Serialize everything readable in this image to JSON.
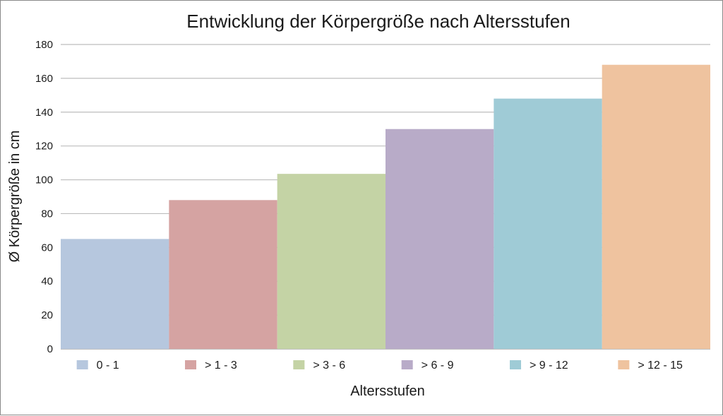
{
  "chart_data": {
    "type": "bar",
    "title": "Entwicklung der Körpergröße nach Altersstufen",
    "xlabel": "Altersstufen",
    "ylabel": "Ø  Körpergröße in cm",
    "categories": [
      "0 - 1",
      "> 1 - 3",
      "> 3 - 6",
      "> 6 - 9",
      "> 9 - 12",
      "> 12 - 15"
    ],
    "values": [
      65,
      88,
      103.5,
      130,
      148,
      168
    ],
    "colors": [
      "#b6c7de",
      "#d5a3a2",
      "#c4d3a5",
      "#b8abc8",
      "#9fcbd6",
      "#efc39f"
    ],
    "ylim": [
      0,
      180
    ],
    "yticks": [
      0,
      20,
      40,
      60,
      80,
      100,
      120,
      140,
      160,
      180
    ],
    "grid": true,
    "legend_position": "bottom"
  }
}
